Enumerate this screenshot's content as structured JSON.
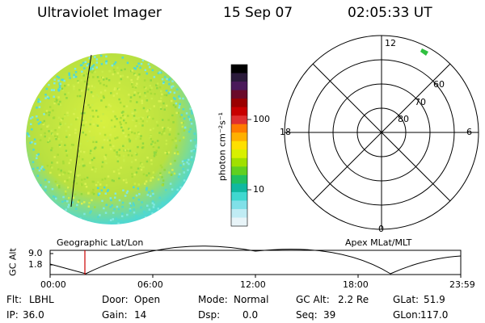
{
  "header": {
    "instrument": "Ultraviolet Imager",
    "date": "15 Sep 07",
    "time": "02:05:33 UT"
  },
  "colorbar": {
    "unit_label": "photon cm⁻²s⁻¹",
    "ticks": [
      "100",
      "10"
    ],
    "colors": [
      "#000000",
      "#2a1a3a",
      "#4a1a5a",
      "#6a0a2a",
      "#9a0000",
      "#c80000",
      "#e03030",
      "#ff7a00",
      "#ffb000",
      "#ffe000",
      "#d8f000",
      "#a0e000",
      "#60d020",
      "#20c060",
      "#10b8a0",
      "#40d8d0",
      "#80e0e8",
      "#c0ecf4",
      "#e8f4f8"
    ]
  },
  "left_panel": {
    "label": "Geographic Lat/Lon",
    "disk_colors": {
      "main": "#b8e040",
      "edge": "#50d8d0",
      "upper": "#d8f040"
    }
  },
  "right_panel": {
    "label": "Apex MLat/MLT",
    "mlt_labels": {
      "top": "12",
      "left": "18",
      "right": "6",
      "bottom": "0"
    },
    "lat_labels": [
      "60",
      "70",
      "80"
    ]
  },
  "orbit_plot": {
    "ylabel": "GC Alt",
    "yticks": [
      "9.0",
      "1.8"
    ],
    "xticks": [
      "00:00",
      "06:00",
      "12:00",
      "18:00",
      "23:59"
    ],
    "marker_color": "#cc0000"
  },
  "info": {
    "flt_label": "Flt:",
    "flt_value": "LBHL",
    "door_label": "Door:",
    "door_value": "Open",
    "mode_label": "Mode:",
    "mode_value": "Normal",
    "gcalt_label": "GC Alt:",
    "gcalt_value": "2.2 Re",
    "glat_label": "GLat:",
    "glat_value": "51.9",
    "ip_label": "IP:",
    "ip_value": "36.0",
    "gain_label": "Gain:",
    "gain_value": "14",
    "dsp_label": "Dsp:",
    "dsp_value": "0.0",
    "seq_label": "Seq:",
    "seq_value": "39",
    "glon_label": "GLon:",
    "glon_value": "117.0"
  }
}
